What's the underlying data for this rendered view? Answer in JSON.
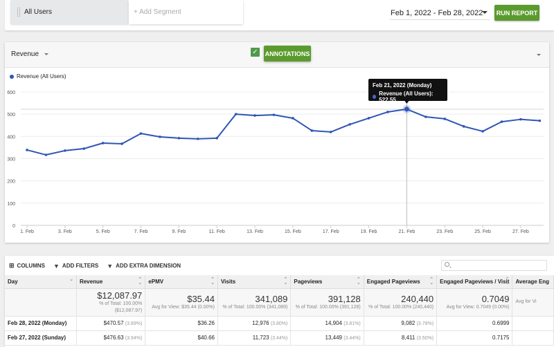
{
  "segments": {
    "active": "All Users",
    "add_placeholder": "+ Add Segment"
  },
  "date_range": "Feb 1, 2022 - Feb 28, 2022",
  "run_report_label": "RUN REPORT",
  "chart_panel": {
    "metric": "Revenue",
    "annotations_label": "ANNOTATIONS",
    "annotations_checked": true,
    "legend": "Revenue (All Users)",
    "tooltip": {
      "title": "Feb 21, 2022 (Monday)",
      "line": "Revenue (All Users): 522.55"
    }
  },
  "chart_data": {
    "type": "line",
    "title": "",
    "xlabel": "",
    "ylabel": "Revenue",
    "ylim": [
      0,
      600
    ],
    "yticks": [
      0,
      100,
      200,
      300,
      400,
      500,
      600
    ],
    "xtick_labels": [
      "1. Feb",
      "3. Feb",
      "5. Feb",
      "7. Feb",
      "9. Feb",
      "11. Feb",
      "13. Feb",
      "15. Feb",
      "17. Feb",
      "19. Feb",
      "21. Feb",
      "23. Feb",
      "25. Feb",
      "27. Feb"
    ],
    "grid": true,
    "legend_position": "top-left",
    "x": [
      1,
      2,
      3,
      4,
      5,
      6,
      7,
      8,
      9,
      10,
      11,
      12,
      13,
      14,
      15,
      16,
      17,
      18,
      19,
      20,
      21,
      22,
      23,
      24,
      25,
      26,
      27,
      28
    ],
    "series": [
      {
        "name": "Revenue (All Users)",
        "color": "#2f55b5",
        "values": [
          339,
          317,
          336,
          345,
          370,
          367,
          413,
          398,
          392,
          389,
          392,
          500,
          494,
          497,
          482,
          426,
          420,
          454,
          482,
          510,
          522.55,
          488,
          479,
          445,
          423,
          466,
          476.63,
          470.57
        ]
      }
    ],
    "highlight": {
      "x": 21,
      "value": 522.55
    }
  },
  "table": {
    "toolbar": {
      "columns": "COLUMNS",
      "add_filters": "ADD FILTERS",
      "add_dimension": "ADD EXTRA DIMENSION",
      "search_placeholder": ""
    },
    "headers": [
      "Day",
      "Revenue",
      "ePMV",
      "Visits",
      "Pageviews",
      "Engaged Pageviews",
      "Engaged Pageviews / Visit",
      "Average Eng"
    ],
    "totals": {
      "revenue": {
        "value": "$12,087.97",
        "sub1": "% of Total: 100.00%",
        "sub2": "($12,087.97)"
      },
      "epmv": {
        "value": "$35.44",
        "sub1": "Avg for View: $35.44 (0.00%)"
      },
      "visits": {
        "value": "341,089",
        "sub1": "% of Total: 100.00% (341,089)"
      },
      "pageviews": {
        "value": "391,128",
        "sub1": "% of Total: 100.00% (391,128)"
      },
      "engaged": {
        "value": "240,440",
        "sub1": "% of Total: 100.00% (240,440)"
      },
      "epv": {
        "value": "0.7049",
        "sub1": "Avg for View: 0.7049 (0.00%)"
      },
      "avg_eng": {
        "value": "",
        "sub1": "Avg for Vi"
      }
    },
    "rows": [
      {
        "day": "Feb 28, 2022 (Monday)",
        "revenue": "$470.57",
        "revenue_pct": "(3.89%)",
        "epmv": "$36.26",
        "visits": "12,976",
        "visits_pct": "(3.80%)",
        "pageviews": "14,904",
        "pageviews_pct": "(3.81%)",
        "engaged": "9,082",
        "engaged_pct": "(3.78%)",
        "epv": "0.6999"
      },
      {
        "day": "Feb 27, 2022 (Sunday)",
        "revenue": "$476.63",
        "revenue_pct": "(3.94%)",
        "epmv": "$40.66",
        "visits": "11,723",
        "visits_pct": "(3.44%)",
        "pageviews": "13,449",
        "pageviews_pct": "(3.44%)",
        "engaged": "8,411",
        "engaged_pct": "(3.50%)",
        "epv": "0.7175"
      }
    ]
  }
}
